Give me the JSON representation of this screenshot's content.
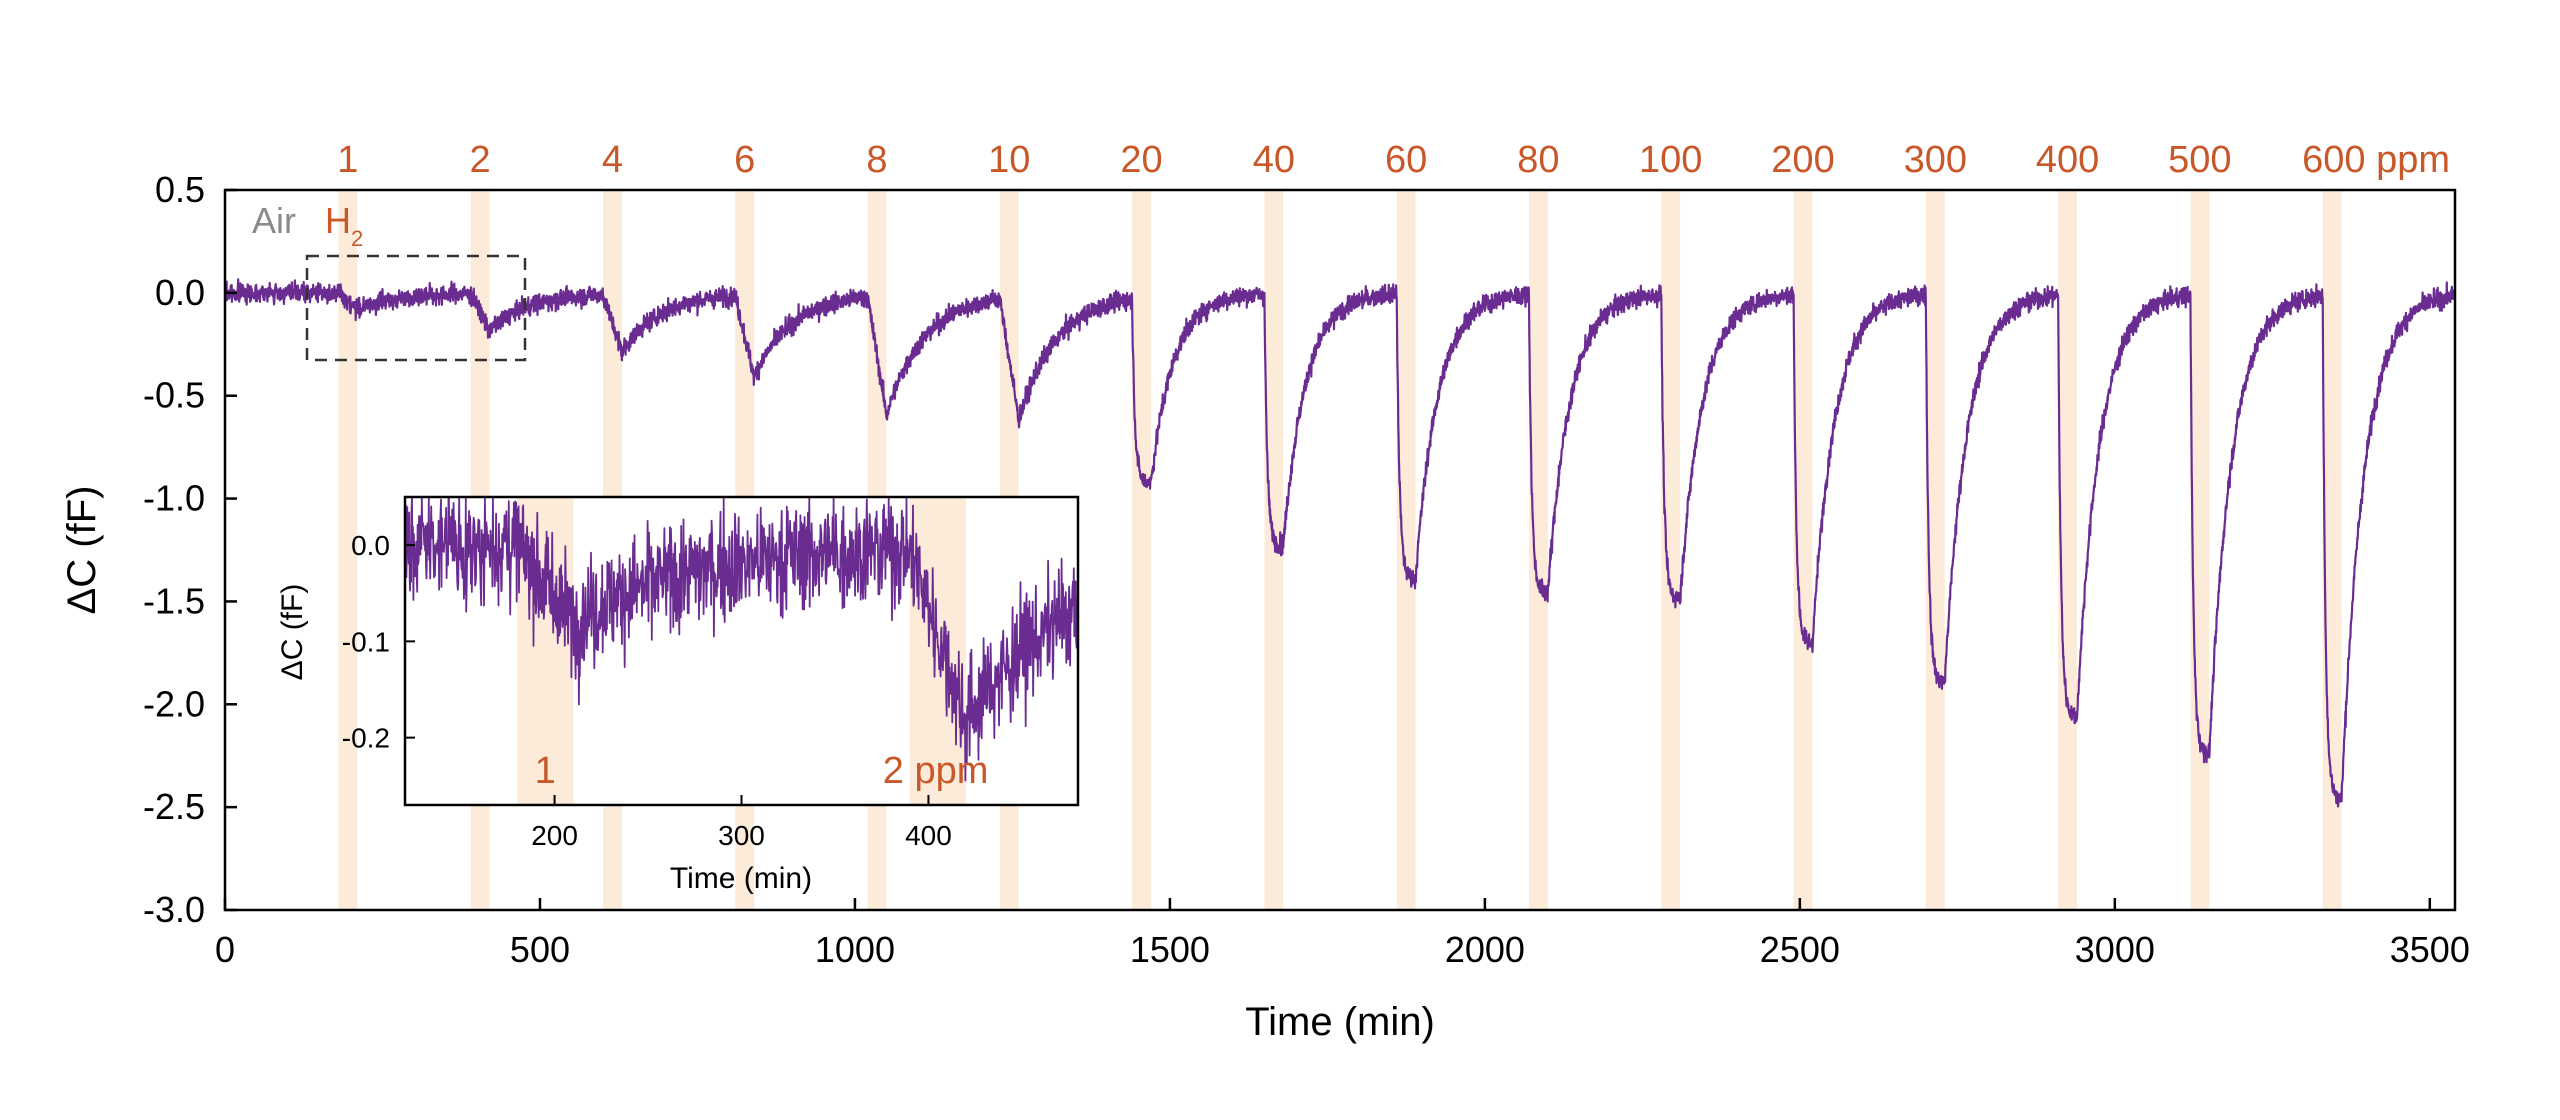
{
  "colors": {
    "trace": "#6a2c91",
    "exposure_band": "#fdebd9",
    "concentration_text": "#c8582a",
    "air_text": "#8a8a8a",
    "axis": "#000000"
  },
  "chart_data": [
    {
      "type": "line",
      "xlabel": "Time (min)",
      "ylabel": "ΔC (fF)",
      "xlim": [
        0,
        3540
      ],
      "ylim": [
        -3.0,
        0.5
      ],
      "x_ticks": [
        "0",
        "500",
        "1000",
        "1500",
        "2000",
        "2500",
        "3000",
        "3500"
      ],
      "y_ticks": [
        "0.5",
        "0.0",
        "-0.5",
        "-1.0",
        "-1.5",
        "-2.0",
        "-2.5",
        "-3.0"
      ],
      "grid": false,
      "annotations": {
        "air": "Air",
        "h2": "H",
        "h2_sub": "2"
      },
      "concentration_labels": [
        "1",
        "2",
        "4",
        "6",
        "8",
        "10",
        "20",
        "40",
        "60",
        "80",
        "100",
        "200",
        "300",
        "400",
        "500",
        "600 ppm"
      ],
      "exposure_windows": [
        [
          180,
          210
        ],
        [
          390,
          420
        ],
        [
          600,
          630
        ],
        [
          810,
          840
        ],
        [
          1020,
          1050
        ],
        [
          1230,
          1260
        ],
        [
          1440,
          1470
        ],
        [
          1650,
          1680
        ],
        [
          1860,
          1890
        ],
        [
          2070,
          2100
        ],
        [
          2280,
          2310
        ],
        [
          2490,
          2520
        ],
        [
          2700,
          2730
        ],
        [
          2910,
          2940
        ],
        [
          3120,
          3150
        ],
        [
          3330,
          3360
        ]
      ],
      "response_minima": [
        -0.08,
        -0.18,
        -0.28,
        -0.4,
        -0.58,
        -0.6,
        -0.9,
        -1.22,
        -1.38,
        -1.45,
        -1.48,
        -1.7,
        -1.88,
        -2.05,
        -2.23,
        -2.45
      ],
      "noise_amplitude_fF": 0.025
    },
    {
      "type": "line",
      "inset": true,
      "xlabel": "Time (min)",
      "ylabel": "ΔC (fF)",
      "xlim": [
        120,
        480
      ],
      "ylim": [
        -0.27,
        0.05
      ],
      "x_ticks": [
        "200",
        "300",
        "400"
      ],
      "y_ticks": [
        "0.0",
        "-0.1",
        "-0.2"
      ],
      "exposure_windows": [
        [
          180,
          210
        ],
        [
          390,
          420
        ]
      ],
      "concentration_labels": [
        "1",
        "2 ppm"
      ]
    }
  ]
}
